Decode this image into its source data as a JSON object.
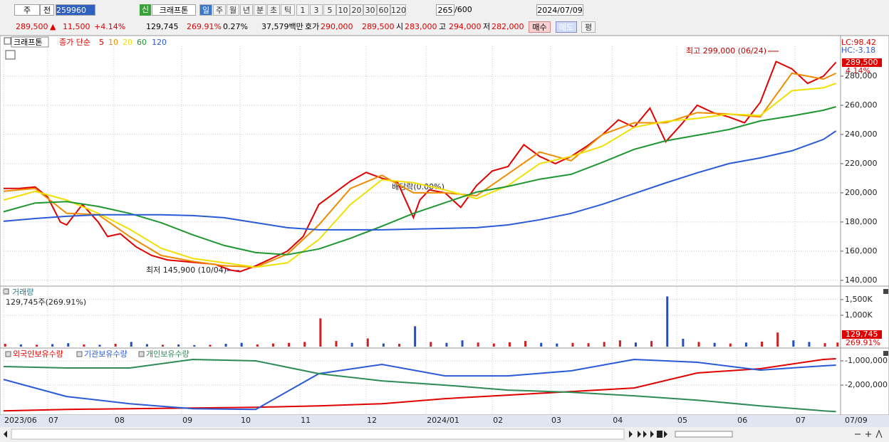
{
  "toolbar": {
    "row1": [
      "주",
      "전",
      "259960",
      "신",
      "크래프톤",
      "일",
      "주",
      "월",
      "년",
      "분",
      "초",
      "틱",
      "1",
      "3",
      "5",
      "10",
      "20",
      "30",
      "60",
      "120",
      "265",
      "/600",
      "2024/07/09"
    ],
    "row2": [
      "289,500",
      "▲",
      "11,500",
      "+4.14%",
      "129,745",
      "269.91%",
      "0.27%",
      "37,579백만",
      "호가",
      "290,000",
      "289,500",
      "시",
      "283,000",
      "고",
      "294,000",
      "저",
      "282,000",
      "매수",
      "매도",
      "평"
    ]
  },
  "chart_data": [
    {
      "type": "line",
      "panel_label": "크래프톤",
      "legend_title": "종가 단순",
      "lc": "LC:98.42",
      "hc": "HC:-3.18",
      "last_label": "289,500",
      "change_label": "4.14%",
      "annotations": [
        "최고 299,000 (06/24)",
        "최저 145,900 (10/04)",
        "배당락(0.00%)"
      ],
      "xlim": [
        0,
        265
      ],
      "ylim": [
        137000,
        299500
      ],
      "yticks": [
        {
          "value": 140000,
          "label": "140,000"
        },
        {
          "value": 160000,
          "label": "160,000"
        },
        {
          "value": 180000,
          "label": "180,000"
        },
        {
          "value": 200000,
          "label": "200,000"
        },
        {
          "value": 220000,
          "label": "220,000"
        },
        {
          "value": 240000,
          "label": "240,000"
        },
        {
          "value": 260000,
          "label": "260,000"
        },
        {
          "value": 280000,
          "label": "280,000"
        }
      ],
      "series": [
        {
          "name": "5",
          "color": "#e00000",
          "x": [
            0,
            5,
            10,
            14,
            18,
            20,
            25,
            30,
            33,
            37,
            42,
            47,
            52,
            57,
            62,
            67,
            72,
            75,
            80,
            85,
            90,
            95,
            100,
            105,
            110,
            115,
            120,
            125,
            130,
            132,
            135,
            140,
            145,
            150,
            155,
            160,
            165,
            170,
            175,
            180,
            185,
            190,
            195,
            200,
            205,
            210,
            215,
            220,
            225,
            230,
            235,
            240,
            245,
            250,
            255,
            260,
            264
          ],
          "values": [
            203000,
            203000,
            204000,
            197000,
            180000,
            178000,
            192000,
            180000,
            170000,
            172000,
            163000,
            157000,
            154000,
            153000,
            152000,
            151000,
            147000,
            146000,
            150000,
            155000,
            160000,
            170000,
            192000,
            200000,
            208000,
            214000,
            210000,
            207000,
            183000,
            195000,
            202000,
            200000,
            190000,
            205000,
            215000,
            218000,
            233000,
            225000,
            220000,
            225000,
            232000,
            240000,
            250000,
            245000,
            258000,
            235000,
            247000,
            260000,
            255000,
            252000,
            248000,
            262000,
            290000,
            285000,
            275000,
            280000,
            289500
          ]
        },
        {
          "name": "10",
          "color": "#f08c00",
          "x": [
            0,
            10,
            20,
            30,
            40,
            50,
            60,
            70,
            80,
            90,
            100,
            110,
            120,
            130,
            140,
            150,
            160,
            170,
            180,
            190,
            200,
            210,
            220,
            230,
            240,
            250,
            260,
            264
          ],
          "values": [
            201000,
            203000,
            186000,
            185000,
            170000,
            157000,
            153000,
            150000,
            149000,
            158000,
            178000,
            203000,
            212000,
            200000,
            200000,
            198000,
            213000,
            228000,
            222000,
            240000,
            248000,
            248000,
            255000,
            254000,
            252000,
            282000,
            278000,
            282000
          ]
        },
        {
          "name": "20",
          "color": "#f0e000",
          "x": [
            0,
            10,
            20,
            30,
            40,
            50,
            60,
            70,
            80,
            90,
            100,
            110,
            120,
            130,
            140,
            150,
            160,
            170,
            180,
            190,
            200,
            210,
            220,
            230,
            240,
            250,
            260,
            264
          ],
          "values": [
            195000,
            201000,
            195000,
            186000,
            175000,
            162000,
            155000,
            152000,
            149000,
            152000,
            168000,
            192000,
            209000,
            207000,
            202000,
            196000,
            205000,
            220000,
            225000,
            232000,
            245000,
            249000,
            251000,
            254000,
            253000,
            270000,
            272000,
            275000
          ]
        },
        {
          "name": "60",
          "color": "#1e9632",
          "x": [
            0,
            10,
            20,
            30,
            40,
            50,
            60,
            70,
            80,
            90,
            100,
            110,
            120,
            130,
            140,
            150,
            160,
            170,
            180,
            190,
            200,
            210,
            220,
            230,
            240,
            250,
            260,
            264
          ],
          "values": [
            187000,
            193000,
            194000,
            190700,
            185900,
            179500,
            171200,
            163900,
            159000,
            157600,
            161500,
            168800,
            177100,
            185900,
            193200,
            200500,
            204400,
            209300,
            212700,
            221000,
            229800,
            235600,
            239500,
            243400,
            249300,
            252700,
            256600,
            259000
          ]
        },
        {
          "name": "120",
          "color": "#2a5bd7",
          "x": [
            0,
            10,
            20,
            30,
            40,
            50,
            60,
            70,
            80,
            90,
            100,
            110,
            120,
            130,
            140,
            150,
            160,
            170,
            180,
            190,
            200,
            210,
            220,
            230,
            240,
            250,
            260,
            264
          ],
          "values": [
            180500,
            182400,
            183900,
            184900,
            184900,
            184900,
            184400,
            182900,
            179500,
            176100,
            174600,
            174600,
            174600,
            175100,
            175600,
            176100,
            178000,
            181500,
            185900,
            192200,
            199500,
            206800,
            213700,
            220000,
            223900,
            228800,
            236600,
            242400
          ]
        }
      ]
    },
    {
      "type": "bar",
      "title": "거래량",
      "subtitle": "129,745주(269.91%)",
      "last_label": "129,745",
      "change_label": "269.91%",
      "xlim": [
        0,
        265
      ],
      "ylim": [
        0,
        1860000
      ],
      "yticks": [
        {
          "value": 1000000,
          "label": "1,000K"
        },
        {
          "value": 1500000,
          "label": "1,500K"
        }
      ],
      "x": [
        0,
        5,
        10,
        15,
        20,
        25,
        30,
        35,
        40,
        45,
        50,
        55,
        60,
        65,
        70,
        75,
        80,
        85,
        90,
        95,
        100,
        105,
        110,
        115,
        120,
        125,
        130,
        135,
        140,
        145,
        150,
        155,
        160,
        165,
        170,
        175,
        180,
        185,
        190,
        195,
        200,
        205,
        210,
        215,
        220,
        225,
        230,
        235,
        240,
        245,
        250,
        255,
        260,
        264
      ],
      "values": [
        90000,
        70000,
        60000,
        80000,
        110000,
        70000,
        60000,
        90000,
        150000,
        80000,
        60000,
        70000,
        50000,
        60000,
        90000,
        120000,
        70000,
        100000,
        120000,
        150000,
        900000,
        180000,
        120000,
        260000,
        100000,
        90000,
        650000,
        150000,
        120000,
        200000,
        130000,
        100000,
        140000,
        180000,
        120000,
        100000,
        120000,
        110000,
        150000,
        200000,
        130000,
        180000,
        1600000,
        250000,
        150000,
        120000,
        100000,
        130000,
        160000,
        450000,
        200000,
        150000,
        110000,
        129745
      ],
      "colors": [
        "#d02020",
        "#2050c0",
        "#d02020",
        "#2050c0",
        "#2050c0",
        "#d02020",
        "#2050c0",
        "#d02020",
        "#2050c0",
        "#2050c0",
        "#d02020",
        "#2050c0",
        "#2050c0",
        "#d02020",
        "#2050c0",
        "#2050c0",
        "#d02020",
        "#d02020",
        "#d02020",
        "#d02020",
        "#d02020",
        "#d02020",
        "#2050c0",
        "#d02020",
        "#2050c0",
        "#d02020",
        "#2050c0",
        "#d02020",
        "#2050c0",
        "#2050c0",
        "#d02020",
        "#d02020",
        "#d02020",
        "#d02020",
        "#2050c0",
        "#2050c0",
        "#d02020",
        "#d02020",
        "#d02020",
        "#d02020",
        "#2050c0",
        "#d02020",
        "#2050c0",
        "#2050c0",
        "#d02020",
        "#2050c0",
        "#d02020",
        "#2050c0",
        "#d02020",
        "#d02020",
        "#2050c0",
        "#2050c0",
        "#d02020",
        "#d02020"
      ]
    },
    {
      "type": "line",
      "x_end_label": "07/09",
      "xlim": [
        0,
        265
      ],
      "ylim": [
        -3200000,
        -560000
      ],
      "yticks": [
        {
          "value": -2000000,
          "label": "-2,000,000"
        },
        {
          "value": -1000000,
          "label": "-1,000,000"
        }
      ],
      "xticks": [
        {
          "value": 0,
          "label": "2023/06"
        },
        {
          "value": 14,
          "label": "07"
        },
        {
          "value": 35,
          "label": "08"
        },
        {
          "value": 56.5,
          "label": "09"
        },
        {
          "value": 75,
          "label": "10"
        },
        {
          "value": 94,
          "label": "11"
        },
        {
          "value": 115,
          "label": "12"
        },
        {
          "value": 134,
          "label": "2024/01"
        },
        {
          "value": 155,
          "label": "02"
        },
        {
          "value": 173.5,
          "label": "03"
        },
        {
          "value": 193,
          "label": "04"
        },
        {
          "value": 213.5,
          "label": "05"
        },
        {
          "value": 232.5,
          "label": "06"
        },
        {
          "value": 251,
          "label": "07"
        }
      ],
      "series": [
        {
          "name": "외국인보유수량",
          "color": "#e00000",
          "x": [
            0,
            20,
            40,
            60,
            80,
            100,
            120,
            140,
            160,
            180,
            200,
            220,
            240,
            260,
            264
          ],
          "values": [
            -3059000,
            -3000000,
            -2971000,
            -2941000,
            -2912000,
            -2853000,
            -2765000,
            -2559000,
            -2412000,
            -2265000,
            -2118000,
            -1500000,
            -1324000,
            -941000,
            -912000
          ]
        },
        {
          "name": "기관보유수량",
          "color": "#2a5bd7",
          "x": [
            0,
            20,
            40,
            60,
            80,
            100,
            120,
            140,
            160,
            180,
            200,
            220,
            240,
            260,
            264
          ],
          "values": [
            -1765000,
            -2471000,
            -2765000,
            -2971000,
            -3000000,
            -1529000,
            -1147000,
            -1618000,
            -1618000,
            -1412000,
            -941000,
            -1059000,
            -1382000,
            -1206000,
            -1176000
          ]
        },
        {
          "name": "개인보유수량",
          "color": "#2e8b57",
          "x": [
            0,
            20,
            40,
            60,
            80,
            100,
            120,
            140,
            160,
            180,
            200,
            220,
            240,
            260,
            264
          ],
          "values": [
            -1235000,
            -1294000,
            -1294000,
            -941000,
            -1000000,
            -1529000,
            -1824000,
            -2000000,
            -2206000,
            -2294000,
            -2441000,
            -2618000,
            -2853000,
            -3059000,
            -3088000
          ]
        }
      ]
    }
  ]
}
